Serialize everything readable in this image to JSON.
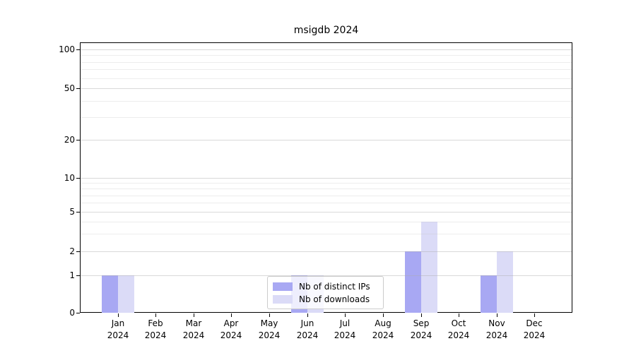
{
  "title": "msigdb 2024",
  "chart_data": {
    "type": "bar",
    "title": "msigdb 2024",
    "categories": [
      "Jan 2024",
      "Feb 2024",
      "Mar 2024",
      "Apr 2024",
      "May 2024",
      "Jun 2024",
      "Jul 2024",
      "Aug 2024",
      "Sep 2024",
      "Oct 2024",
      "Nov 2024",
      "Dec 2024"
    ],
    "x_tick_months": [
      "Jan",
      "Feb",
      "Mar",
      "Apr",
      "May",
      "Jun",
      "Jul",
      "Aug",
      "Sep",
      "Oct",
      "Nov",
      "Dec"
    ],
    "x_tick_year": "2024",
    "series": [
      {
        "name": "Nb of distinct IPs",
        "color": "#a8a8f3",
        "values": [
          1,
          0,
          0,
          0,
          0,
          1,
          0,
          0,
          2,
          0,
          1,
          0
        ]
      },
      {
        "name": "Nb of downloads",
        "color": "#dbdbf7",
        "values": [
          1,
          0,
          0,
          0,
          0,
          1,
          0,
          0,
          4,
          0,
          2,
          0
        ]
      }
    ],
    "yscale": "log-like (1-2-5 tick series, linear segment 0-1)",
    "yticks": [
      0,
      1,
      2,
      5,
      10,
      20,
      50,
      100
    ],
    "minor_yticks": [
      3,
      4,
      6,
      7,
      8,
      9,
      30,
      40,
      60,
      70,
      80,
      90
    ],
    "ylim": [
      0,
      113
    ],
    "xlabel": "",
    "ylabel": "",
    "grid": "horizontal major and minor gridlines",
    "legend": {
      "position": "lower center, inside plot",
      "labels": [
        "Nb of distinct IPs",
        "Nb of downloads"
      ]
    },
    "background_color": "#ffffff"
  }
}
